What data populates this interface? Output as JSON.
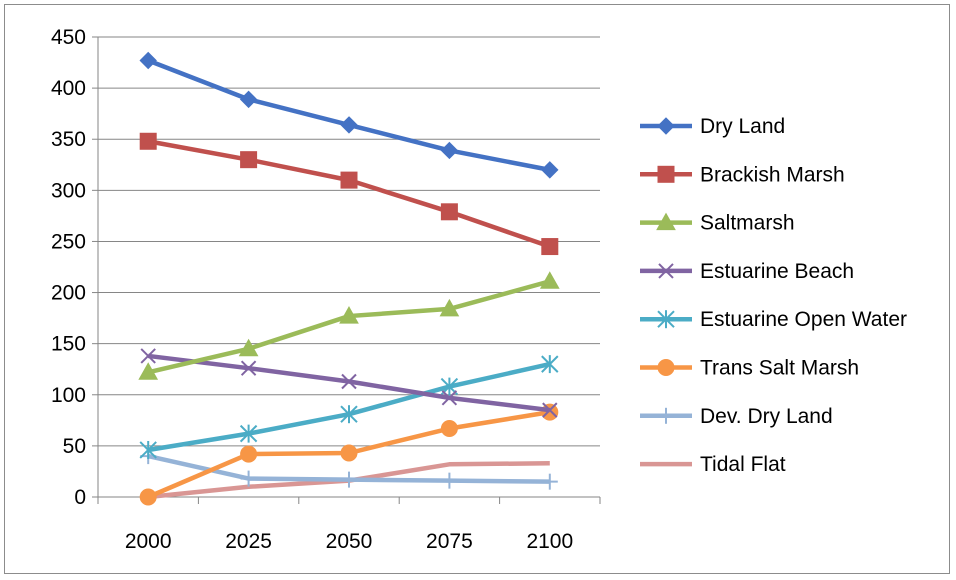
{
  "chart_data": {
    "type": "line",
    "title": "",
    "xlabel": "",
    "ylabel": "",
    "categories": [
      "2000",
      "2025",
      "2050",
      "2075",
      "2100"
    ],
    "ylim": [
      0,
      450
    ],
    "yticks": [
      0,
      50,
      100,
      150,
      200,
      250,
      300,
      350,
      400,
      450
    ],
    "grid": "horizontal",
    "legend_position": "right",
    "series": [
      {
        "name": "Dry Land",
        "values": [
          427,
          389,
          364,
          339,
          320
        ],
        "color": "#4472c4",
        "marker": "diamond"
      },
      {
        "name": "Brackish Marsh",
        "values": [
          348,
          330,
          310,
          279,
          245
        ],
        "color": "#c0504d",
        "marker": "square"
      },
      {
        "name": "Saltmarsh",
        "values": [
          122,
          145,
          177,
          184,
          211
        ],
        "color": "#9bbb59",
        "marker": "triangle"
      },
      {
        "name": "Estuarine Beach",
        "values": [
          138,
          126,
          113,
          97,
          85
        ],
        "color": "#8064a2",
        "marker": "x"
      },
      {
        "name": "Estuarine Open Water",
        "values": [
          46,
          62,
          81,
          108,
          130
        ],
        "color": "#4bacc6",
        "marker": "star"
      },
      {
        "name": "Trans Salt Marsh",
        "values": [
          0,
          42,
          43,
          67,
          83
        ],
        "color": "#f79646",
        "marker": "circle"
      },
      {
        "name": "Dev. Dry Land",
        "values": [
          40,
          18,
          17,
          16,
          15
        ],
        "color": "#95b3d7",
        "marker": "plus"
      },
      {
        "name": "Tidal Flat",
        "values": [
          0,
          10,
          16,
          32,
          33
        ],
        "color": "#d99694",
        "marker": "none"
      }
    ]
  }
}
